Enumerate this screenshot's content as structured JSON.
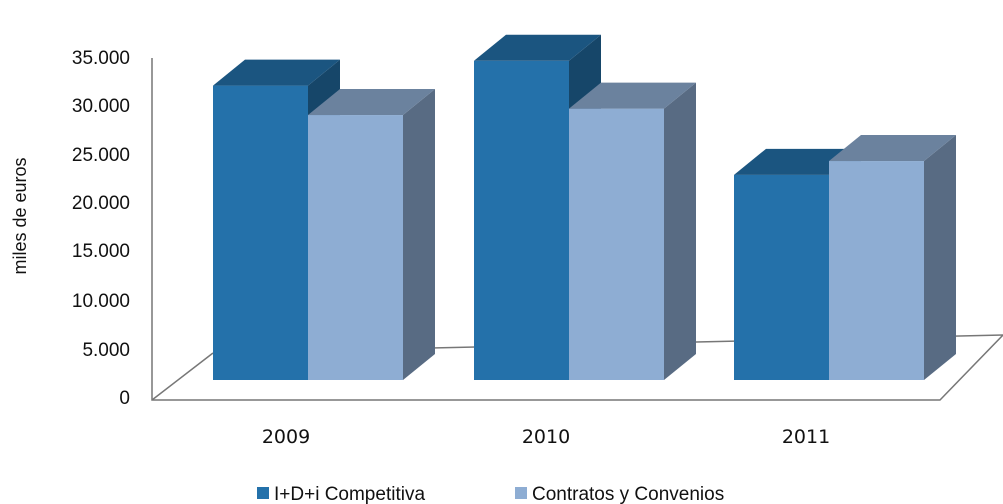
{
  "chart_data": {
    "type": "bar",
    "style": "3d-clustered-column",
    "title": "",
    "ylabel": "miles de euros",
    "xlabel": "",
    "categories": [
      "2009",
      "2010",
      "2011"
    ],
    "ylim": [
      0,
      35000
    ],
    "yticks": [
      0,
      5000,
      10000,
      15000,
      20000,
      25000,
      30000,
      35000
    ],
    "ytick_labels": [
      "0",
      "5.000",
      "10.000",
      "15.000",
      "20.000",
      "25.000",
      "30.000",
      "35.000"
    ],
    "grid": false,
    "legend_position": "bottom",
    "series": [
      {
        "name": "I+D+i Competitiva",
        "values": [
          32000,
          34700,
          22300
        ],
        "color": "#2471aa"
      },
      {
        "name": "Contratos y Convenios",
        "values": [
          28800,
          29500,
          23800
        ],
        "color": "#8eadd3"
      }
    ]
  }
}
